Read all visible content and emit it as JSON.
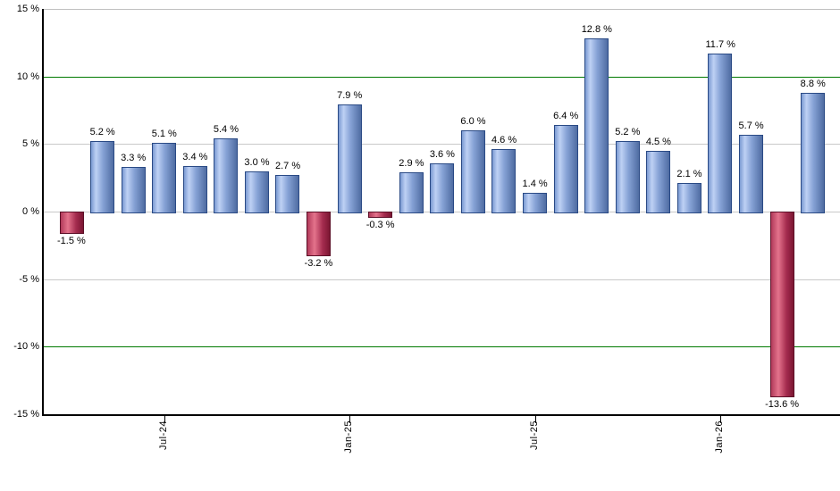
{
  "chart_data": {
    "type": "bar",
    "title": "",
    "xlabel": "",
    "ylabel": "",
    "ylim": [
      -15,
      15
    ],
    "grid": true,
    "legend": false,
    "colors": {
      "positive_bar": "#7b9ad2",
      "positive_bar_border": "#2a4a85",
      "negative_bar": "#b23a5a",
      "negative_bar_border": "#5c0f27",
      "gridline": "#c9c9c9",
      "plot_top_border": "#c0c0c0",
      "threshold_line": "#007a00",
      "axis": "#000000",
      "label_text": "#000000"
    },
    "threshold_values": [
      10,
      -10
    ],
    "y_axis": {
      "ticks": [
        {
          "v": 15,
          "label": "15 %"
        },
        {
          "v": 10,
          "label": "10 %"
        },
        {
          "v": 5,
          "label": "5 %"
        },
        {
          "v": 0,
          "label": "0 %"
        },
        {
          "v": -5,
          "label": "-5 %"
        },
        {
          "v": -10,
          "label": "-10 %"
        },
        {
          "v": -15,
          "label": "-15 %"
        }
      ]
    },
    "x_axis": {
      "ticks": [
        {
          "bar_index": 3,
          "label": "Jul-24"
        },
        {
          "bar_index": 9,
          "label": "Jan-25"
        },
        {
          "bar_index": 15,
          "label": "Jul-25"
        },
        {
          "bar_index": 21,
          "label": "Jan-26"
        }
      ]
    },
    "bars": [
      {
        "value": -1.5,
        "label": "-1.5 %"
      },
      {
        "value": 5.2,
        "label": "5.2 %"
      },
      {
        "value": 3.3,
        "label": "3.3 %"
      },
      {
        "value": 5.1,
        "label": "5.1 %"
      },
      {
        "value": 3.4,
        "label": "3.4 %"
      },
      {
        "value": 5.4,
        "label": "5.4 %"
      },
      {
        "value": 3.0,
        "label": "3.0 %"
      },
      {
        "value": 2.7,
        "label": "2.7 %"
      },
      {
        "value": -3.2,
        "label": "-3.2 %"
      },
      {
        "value": 7.9,
        "label": "7.9 %"
      },
      {
        "value": -0.3,
        "label": "-0.3 %"
      },
      {
        "value": 2.9,
        "label": "2.9 %"
      },
      {
        "value": 3.6,
        "label": "3.6 %"
      },
      {
        "value": 6.0,
        "label": "6.0 %"
      },
      {
        "value": 4.6,
        "label": "4.6 %"
      },
      {
        "value": 1.4,
        "label": "1.4 %"
      },
      {
        "value": 6.4,
        "label": "6.4 %"
      },
      {
        "value": 12.8,
        "label": "12.8 %"
      },
      {
        "value": 5.2,
        "label": "5.2 %"
      },
      {
        "value": 4.5,
        "label": "4.5 %"
      },
      {
        "value": 2.1,
        "label": "2.1 %"
      },
      {
        "value": 11.7,
        "label": "11.7 %"
      },
      {
        "value": 5.7,
        "label": "5.7 %"
      },
      {
        "value": -13.6,
        "label": "-13.6 %"
      },
      {
        "value": 8.8,
        "label": "8.8 %"
      }
    ]
  }
}
